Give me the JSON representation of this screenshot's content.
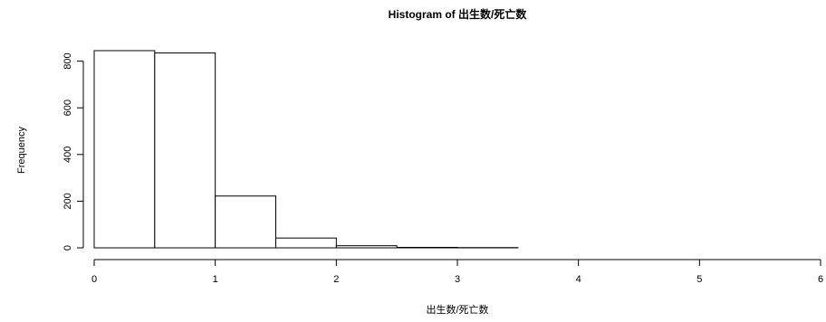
{
  "chart_data": {
    "type": "bar",
    "title": "Histogram of 出生数/死亡数",
    "xlabel": "出生数/死亡数",
    "ylabel": "Frequency",
    "bin_edges": [
      0,
      0.5,
      1,
      1.5,
      2,
      2.5,
      3,
      3.5,
      4,
      4.5,
      5,
      5.5,
      6
    ],
    "values": [
      845,
      835,
      222,
      42,
      9,
      2,
      1,
      0,
      0,
      0,
      0,
      0
    ],
    "xlim": [
      0,
      6
    ],
    "ylim": [
      0,
      845
    ],
    "x_ticks": [
      0,
      1,
      2,
      3,
      4,
      5,
      6
    ],
    "y_ticks": [
      0,
      200,
      400,
      600,
      800
    ],
    "grid": false,
    "colors": {
      "bar_fill": "#ffffff",
      "bar_stroke": "#000000",
      "axis": "#000000"
    }
  }
}
